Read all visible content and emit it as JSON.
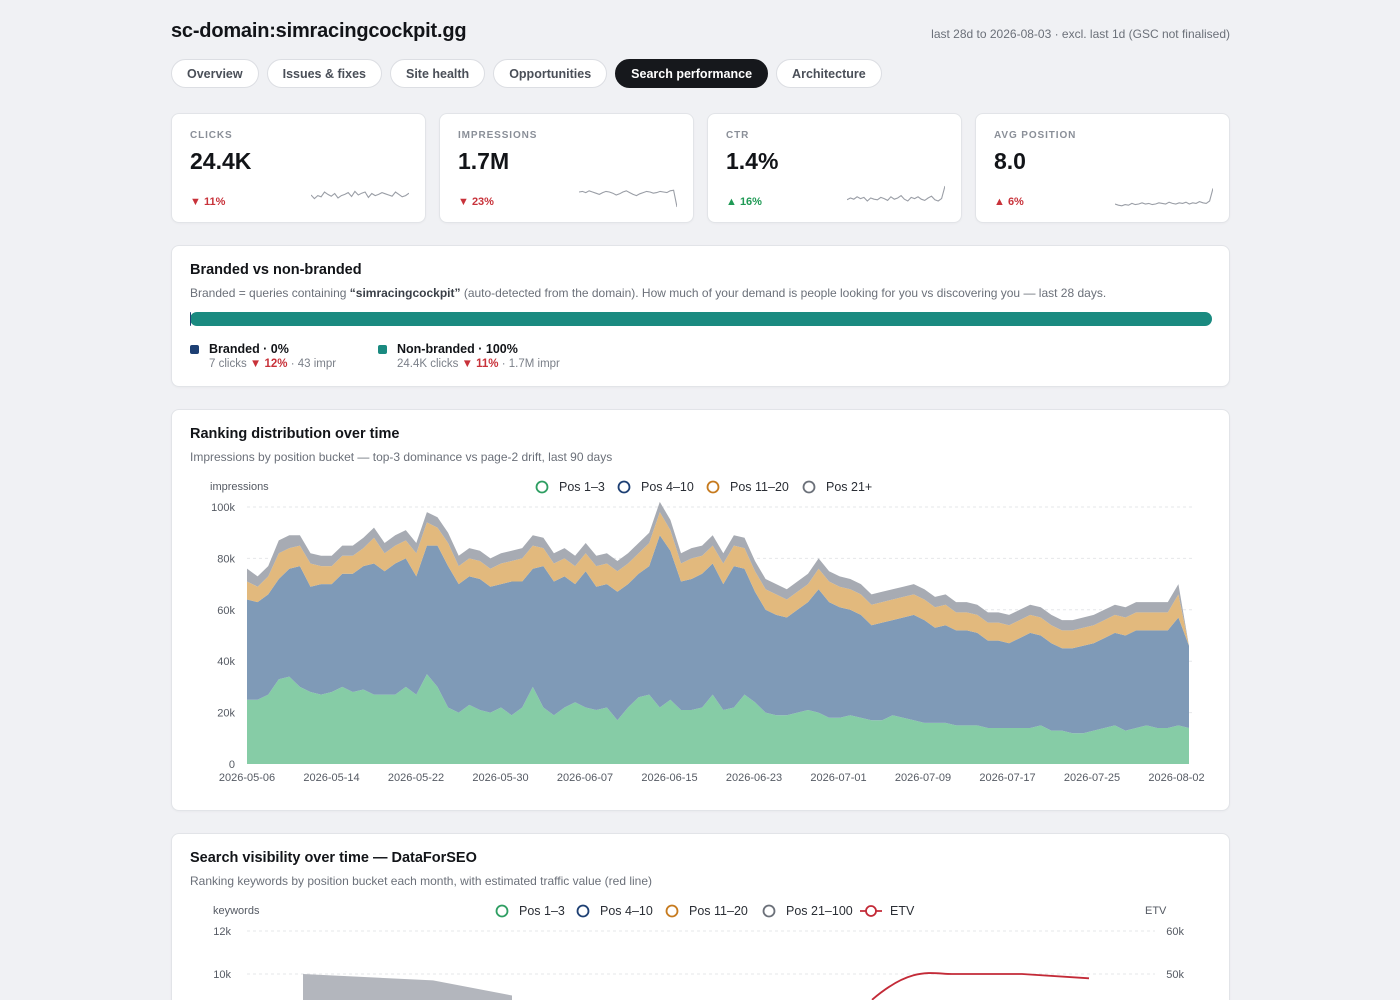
{
  "header": {
    "title": "sc-domain:simracingcockpit.gg",
    "range_note": "last 28d to 2026-08-03 · excl. last 1d (GSC not finalised)"
  },
  "tabs": [
    {
      "label": "Overview",
      "active": false
    },
    {
      "label": "Issues & fixes",
      "active": false
    },
    {
      "label": "Site health",
      "active": false
    },
    {
      "label": "Opportunities",
      "active": false
    },
    {
      "label": "Search performance",
      "active": true
    },
    {
      "label": "Architecture",
      "active": false
    }
  ],
  "kpis": [
    {
      "label": "CLICKS",
      "value": "24.4K",
      "delta": "▼ 11%",
      "trend": "down",
      "spark": [
        50,
        38,
        48,
        44,
        60,
        52,
        46,
        55,
        40,
        48,
        52,
        58,
        45,
        62,
        50,
        56,
        60,
        42,
        55,
        48,
        52,
        58,
        54,
        50,
        46,
        60,
        52,
        44,
        48,
        56
      ]
    },
    {
      "label": "IMPRESSIONS",
      "value": "1.7M",
      "delta": "▼ 23%",
      "trend": "down",
      "spark": [
        60,
        62,
        58,
        64,
        60,
        56,
        52,
        58,
        62,
        60,
        56,
        50,
        54,
        60,
        64,
        58,
        52,
        48,
        54,
        58,
        62,
        60,
        56,
        58,
        62,
        60,
        58,
        64,
        66,
        10
      ]
    },
    {
      "label": "CTR",
      "value": "1.4%",
      "delta": "▲ 16%",
      "trend": "up",
      "spark": [
        34,
        40,
        36,
        44,
        38,
        42,
        30,
        40,
        36,
        34,
        42,
        38,
        32,
        44,
        36,
        40,
        48,
        36,
        30,
        42,
        38,
        44,
        36,
        32,
        40,
        46,
        34,
        30,
        38,
        80
      ]
    },
    {
      "label": "AVG POSITION",
      "value": "8.0",
      "delta": "▲ 6%",
      "trend": "up",
      "spark": [
        20,
        16,
        14,
        18,
        16,
        22,
        18,
        20,
        24,
        20,
        22,
        18,
        20,
        24,
        22,
        20,
        26,
        22,
        20,
        24,
        22,
        26,
        20,
        24,
        22,
        28,
        24,
        22,
        30,
        72
      ]
    }
  ],
  "branded": {
    "title": "Branded vs non-branded",
    "subtitle_pre": "Branded = queries containing ",
    "subtitle_term": "“simracingcockpit”",
    "subtitle_post": " (auto-detected from the domain). How much of your demand is people looking for you vs discovering you — last 28 days.",
    "branded_share": 0.0003,
    "branded_color": "#1d3f73",
    "nonbranded_color": "#1a8a80",
    "branded_label": "Branded · 0%",
    "branded_clicks": "7 clicks",
    "branded_delta": "▼ 12%",
    "branded_impr": "· 43 impr",
    "nonbranded_label": "Non-branded · 100%",
    "nonbranded_clicks": "24.4K clicks",
    "nonbranded_delta": "▼ 11%",
    "nonbranded_impr": "· 1.7M impr"
  },
  "ranking": {
    "title": "Ranking distribution over time",
    "subtitle": "Impressions by position bucket — top-3 dominance vs page-2 drift, last 90 days"
  },
  "visibility": {
    "title": "Search visibility over time — DataForSEO",
    "subtitle": "Ranking keywords by position bucket each month, with estimated traffic value (red line)"
  },
  "chart_data": [
    {
      "type": "area",
      "stacked": true,
      "ylabel": "impressions",
      "ylim": [
        0,
        100000
      ],
      "yticks": [
        "0",
        "20k",
        "40k",
        "60k",
        "80k",
        "100k"
      ],
      "xtick_labels": [
        "2026-05-06",
        "2026-05-14",
        "2026-05-22",
        "2026-05-30",
        "2026-06-07",
        "2026-06-15",
        "2026-06-23",
        "2026-07-01",
        "2026-07-09",
        "2026-07-17",
        "2026-07-25",
        "2026-08-02"
      ],
      "legend_position": "top",
      "grid": true,
      "series": [
        {
          "name": "Pos 1–3",
          "color": "#86cca6",
          "stroke": "#2e9e62",
          "values": [
            25000,
            25000,
            27000,
            33000,
            34000,
            30000,
            28000,
            27000,
            28000,
            30000,
            28000,
            29000,
            27000,
            27000,
            27000,
            30000,
            27000,
            35000,
            30000,
            22000,
            20000,
            23000,
            21000,
            20000,
            22000,
            19000,
            22000,
            30000,
            22000,
            19000,
            22000,
            24000,
            22000,
            21000,
            22000,
            17000,
            22000,
            26000,
            27000,
            22000,
            25000,
            21000,
            21000,
            22000,
            27000,
            21000,
            22000,
            27000,
            24000,
            20000,
            19000,
            19000,
            20000,
            21000,
            20000,
            18000,
            18000,
            19000,
            18000,
            17000,
            17000,
            19000,
            18000,
            17000,
            16000,
            16000,
            16000,
            15000,
            15000,
            15000,
            14000,
            14000,
            14000,
            14000,
            14000,
            15000,
            13000,
            13000,
            12000,
            12000,
            13000,
            14000,
            15000,
            13000,
            14000,
            15000,
            14000,
            14000,
            15000,
            14000
          ]
        },
        {
          "name": "Pos 4–10",
          "color": "#7f9ab7",
          "stroke": "#1d3f73",
          "values": [
            39000,
            38000,
            39000,
            39000,
            42000,
            47000,
            41000,
            43000,
            42000,
            44000,
            46000,
            48000,
            51000,
            48000,
            51000,
            50000,
            46000,
            50000,
            55000,
            55000,
            50000,
            50000,
            51000,
            49000,
            48000,
            52000,
            49000,
            46000,
            55000,
            52000,
            51000,
            46000,
            53000,
            48000,
            48000,
            50000,
            48000,
            48000,
            50000,
            67000,
            58000,
            50000,
            51000,
            52000,
            51000,
            49000,
            55000,
            49000,
            43000,
            40000,
            39000,
            38000,
            40000,
            42000,
            48000,
            45000,
            43000,
            41000,
            40000,
            37000,
            38000,
            37000,
            39000,
            41000,
            40000,
            37000,
            38000,
            37000,
            37000,
            36000,
            34000,
            34000,
            33000,
            35000,
            37000,
            35000,
            34000,
            32000,
            33000,
            34000,
            34000,
            35000,
            36000,
            37000,
            38000,
            37000,
            38000,
            38000,
            42000,
            32000
          ]
        },
        {
          "name": "Pos 11–20",
          "color": "#e2b97d",
          "stroke": "#c67a1e",
          "values": [
            7000,
            6000,
            7000,
            10000,
            8000,
            8000,
            9000,
            7000,
            7000,
            7000,
            7000,
            7000,
            10000,
            7000,
            7000,
            7000,
            9000,
            9000,
            7000,
            9000,
            7000,
            7000,
            7000,
            7000,
            8000,
            8000,
            9000,
            9000,
            7000,
            7000,
            7000,
            7000,
            7000,
            8000,
            8000,
            8000,
            8000,
            8000,
            9000,
            9000,
            8000,
            7000,
            8000,
            7000,
            7000,
            8000,
            8000,
            8000,
            8000,
            8000,
            8000,
            7000,
            7000,
            7000,
            8000,
            8000,
            8000,
            8000,
            8000,
            8000,
            8000,
            8000,
            8000,
            8000,
            8000,
            8000,
            8000,
            7000,
            7000,
            7000,
            7000,
            7000,
            7000,
            7000,
            7000,
            7000,
            7000,
            7000,
            7000,
            7000,
            7000,
            7000,
            7000,
            7000,
            7000,
            7000,
            7000,
            7000,
            9000,
            0
          ]
        },
        {
          "name": "Pos 21+",
          "color": "#a7abb3",
          "stroke": "#6b7079",
          "values": [
            5000,
            4000,
            4000,
            5000,
            5000,
            4000,
            4000,
            4000,
            4000,
            4000,
            4000,
            4000,
            4000,
            4000,
            4000,
            4000,
            4000,
            4000,
            4000,
            4000,
            4000,
            4000,
            4000,
            4000,
            4000,
            4000,
            4000,
            4000,
            4000,
            4000,
            4000,
            4000,
            4000,
            4000,
            4000,
            4000,
            4000,
            4000,
            4000,
            4000,
            4000,
            4000,
            4000,
            4000,
            4000,
            4000,
            4000,
            4000,
            4000,
            4000,
            4000,
            4000,
            4000,
            4000,
            4000,
            4000,
            4000,
            4000,
            4000,
            4000,
            4000,
            4000,
            4000,
            4000,
            4000,
            4000,
            4000,
            4000,
            4000,
            4000,
            4000,
            4000,
            4000,
            4000,
            4000,
            4000,
            4000,
            4000,
            4000,
            4000,
            4000,
            4000,
            4000,
            4000,
            4000,
            4000,
            4000,
            4000,
            4000,
            0
          ]
        }
      ]
    },
    {
      "type": "area",
      "ylabel": "keywords",
      "y2label": "ETV",
      "ylim": [
        0,
        12000
      ],
      "y2lim": [
        0,
        60000
      ],
      "yticks": [
        "10k",
        "12k"
      ],
      "y2ticks": [
        "50k",
        "60k"
      ],
      "legend_position": "top",
      "grid": true,
      "series": [
        {
          "name": "Pos 1–3",
          "color": "#2e9e62",
          "values": []
        },
        {
          "name": "Pos 4–10",
          "color": "#1d3f73",
          "values": []
        },
        {
          "name": "Pos 11–20",
          "color": "#c67a1e",
          "values": []
        },
        {
          "name": "Pos 21–100",
          "color": "#6b7079",
          "values": [
            10000,
            9700,
            9000
          ]
        },
        {
          "name": "ETV",
          "color": "#c32a37",
          "values": [
            44000,
            50000,
            50000,
            49000
          ]
        }
      ]
    }
  ]
}
